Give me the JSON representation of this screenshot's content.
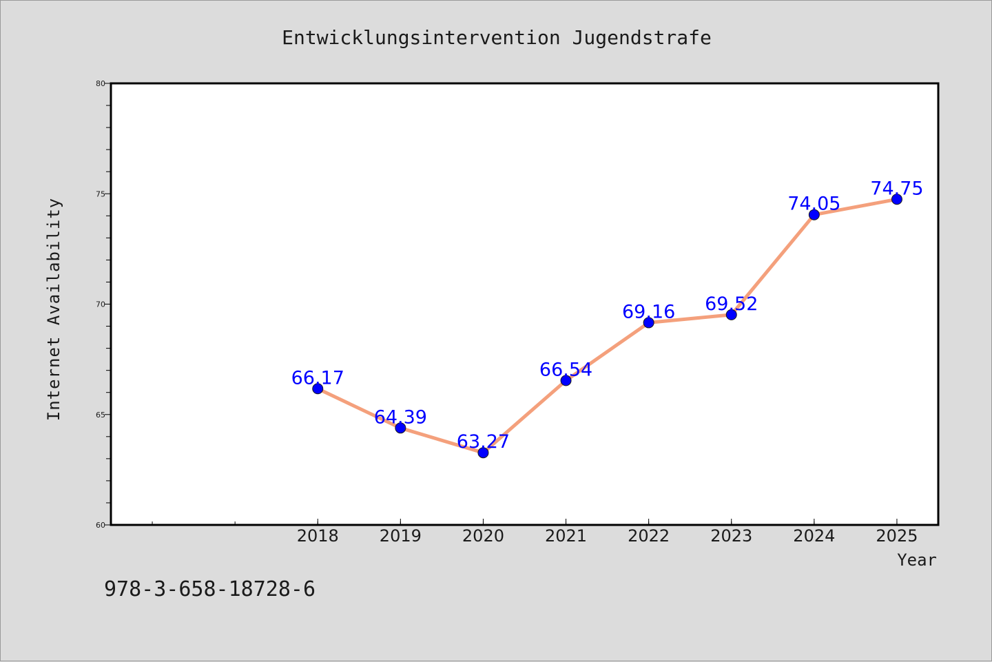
{
  "chart_data": {
    "type": "line",
    "title": "Entwicklungsintervention Jugendstrafe",
    "xlabel": "Year",
    "ylabel": "Internet Availability",
    "categories": [
      "2018",
      "2019",
      "2020",
      "2021",
      "2022",
      "2023",
      "2024",
      "2025"
    ],
    "x_axis_range": [
      2015.5,
      2025.5
    ],
    "series": [
      {
        "values": [
          66.17,
          64.39,
          63.27,
          66.54,
          69.16,
          69.52,
          74.05,
          74.75
        ],
        "line_color": "#f4a07c",
        "marker_color": "#0000ff"
      }
    ],
    "data_labels": [
      "66.17",
      "64.39",
      "63.27",
      "66.54",
      "69.16",
      "69.52",
      "74.05",
      "74.75"
    ],
    "data_label_color": "#0000ff",
    "ylim": [
      60,
      80
    ],
    "y_ticks": [
      "60",
      "65",
      "70",
      "75",
      "80"
    ],
    "grid": false,
    "legend": "none"
  },
  "footer": {
    "isbn": "978-3-658-18728-6"
  },
  "colors": {
    "background": "#dcdcdc",
    "plot_background": "#ffffff",
    "axis": "#000000",
    "text": "#1a1a1a"
  }
}
